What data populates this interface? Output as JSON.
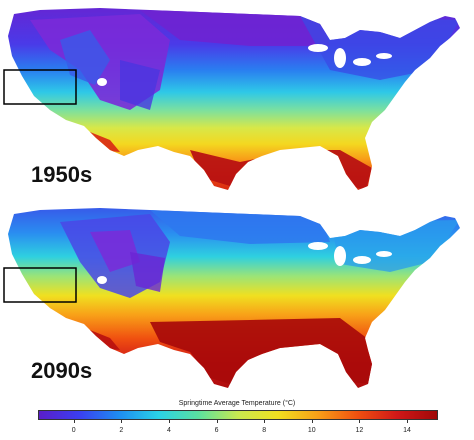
{
  "panels": [
    {
      "label": "1950s",
      "map_name": "springtime-temperature-map-1950s"
    },
    {
      "label": "2090s",
      "map_name": "springtime-temperature-map-2090s"
    }
  ],
  "colorbar": {
    "title": "Springtime Average Temperature (°C)",
    "ticks": [
      "0",
      "2",
      "4",
      "6",
      "8",
      "10",
      "12",
      "14"
    ],
    "range": [
      -1.5,
      15.3
    ],
    "colors": [
      "#5a1ec8",
      "#3b3ef0",
      "#1e8cf0",
      "#2ad2e6",
      "#5ae0a0",
      "#c8e850",
      "#f0e020",
      "#f8a018",
      "#f05010",
      "#d01818",
      "#a00808"
    ]
  },
  "highlight_box": "Sierra Nevada region"
}
